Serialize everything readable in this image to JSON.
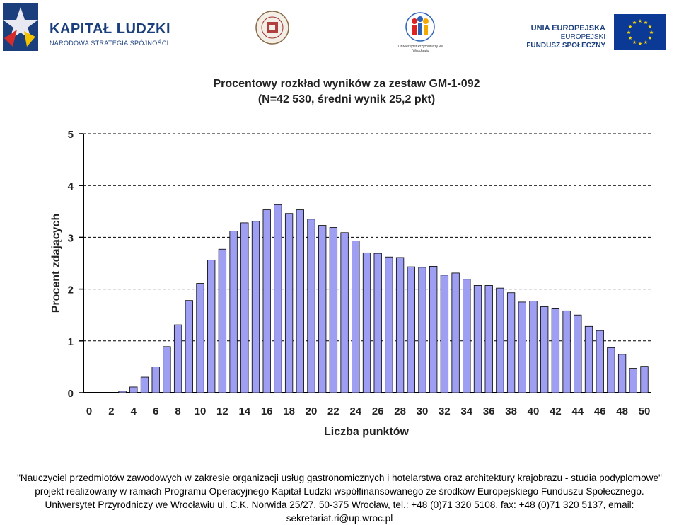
{
  "logos": {
    "kapital_title": "KAPITAŁ LUDZKI",
    "kapital_sub": "NARODOWA STRATEGIA SPÓJNOŚCI",
    "ue_line1": "UNIA EUROPEJSKA",
    "ue_line2": "EUROPEJSKI",
    "ue_line3": "FUNDUSZ SPOŁECZNY",
    "seal2_caption": "Uniwersytet Przyrodniczy we Wrocławiu"
  },
  "colors": {
    "bar_fill": "#9e9ef3",
    "bar_stroke": "#000000",
    "axis": "#000000",
    "grid": "#000000",
    "text": "#222222",
    "kapital_blue": "#1b3f7c",
    "eu_blue": "#0b3a96",
    "eu_star": "#ffd700"
  },
  "chart_data": {
    "type": "bar",
    "title": "Procentowy rozkład wyników za zestaw GM-1-092",
    "subtitle": "(N=42 530, średni wynik 25,2 pkt)",
    "xlabel": "Liczba punktów",
    "ylabel": "Procent zdających",
    "ylim": [
      0,
      5
    ],
    "yticks": [
      0,
      1,
      2,
      3,
      4,
      5
    ],
    "grid": "dashed horizontal",
    "categories": [
      0,
      1,
      2,
      3,
      4,
      5,
      6,
      7,
      8,
      9,
      10,
      11,
      12,
      13,
      14,
      15,
      16,
      17,
      18,
      19,
      20,
      21,
      22,
      23,
      24,
      25,
      26,
      27,
      28,
      29,
      30,
      31,
      32,
      33,
      34,
      35,
      36,
      37,
      38,
      39,
      40,
      41,
      42,
      43,
      44,
      45,
      46,
      47,
      48,
      49,
      50
    ],
    "xtick_labels": [
      "0",
      "2",
      "4",
      "6",
      "8",
      "10",
      "12",
      "14",
      "16",
      "18",
      "20",
      "22",
      "24",
      "26",
      "28",
      "30",
      "32",
      "34",
      "36",
      "38",
      "40",
      "42",
      "44",
      "46",
      "48",
      "50"
    ],
    "values": [
      0,
      0,
      0,
      0.03,
      0.11,
      0.3,
      0.5,
      0.89,
      1.31,
      1.78,
      2.11,
      2.56,
      2.77,
      3.12,
      3.28,
      3.31,
      3.53,
      3.63,
      3.46,
      3.53,
      3.35,
      3.23,
      3.19,
      3.09,
      2.93,
      2.7,
      2.69,
      2.62,
      2.61,
      2.43,
      2.42,
      2.44,
      2.27,
      2.31,
      2.19,
      2.07,
      2.07,
      2.02,
      1.93,
      1.75,
      1.77,
      1.66,
      1.62,
      1.58,
      1.5,
      1.28,
      1.2,
      0.87,
      0.74,
      0.47,
      0.51
    ]
  },
  "footer": {
    "line1": "\"Nauczyciel przedmiotów zawodowych w zakresie organizacji usług gastronomicznych i hotelarstwa oraz architektury krajobrazu - studia podyplomowe\"",
    "line2": "projekt realizowany w ramach Programu Operacyjnego Kapitał Ludzki współfinansowanego ze środków Europejskiego Funduszu Społecznego.",
    "line3": "Uniwersytet Przyrodniczy we Wrocławiu ul. C.K. Norwida 25/27, 50-375 Wrocław, tel.: +48 (0)71 320 5108, fax: +48 (0)71 320 5137, email:",
    "line4": "sekretariat.ri@up.wroc.pl"
  }
}
